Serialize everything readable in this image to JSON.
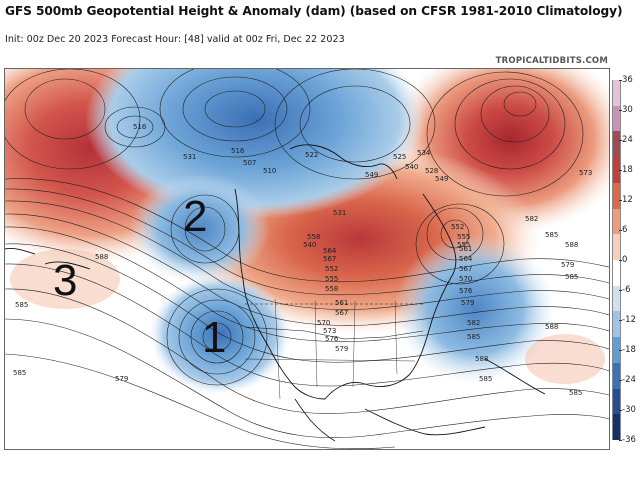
{
  "header": {
    "title": "GFS 500mb Geopotential Height & Anomaly (dam) (based on CFSR 1981-2010 Climatology)",
    "subtitle": "Init: 00z Dec 20 2023   Forecast Hour: [48]   valid at 00z Fri, Dec 22 2023",
    "credit": "TROPICALTIDBITS.COM"
  },
  "annotations": {
    "one": "1",
    "two": "2",
    "three": "3"
  },
  "colorbar": {
    "labels": [
      "36",
      "30",
      "24",
      "18",
      "12",
      "6",
      "0",
      "-6",
      "-12",
      "-18",
      "-24",
      "-30",
      "-36"
    ],
    "colors": [
      "#e7c1d6",
      "#c993b6",
      "#a04b52",
      "#c0413a",
      "#d96a4c",
      "#ed9c7c",
      "#f7cfba",
      "#ffffff",
      "#cfe0f2",
      "#9ec5e8",
      "#5d9fd4",
      "#3a72bb",
      "#244f93",
      "#15306a"
    ]
  },
  "contour_labels": [
    "516",
    "531",
    "507",
    "516",
    "510",
    "522",
    "549",
    "525",
    "540",
    "534",
    "528",
    "549",
    "531",
    "558",
    "564",
    "540",
    "567",
    "552",
    "555",
    "558",
    "561",
    "567",
    "570",
    "573",
    "576",
    "579",
    "582",
    "585",
    "588",
    "573",
    "579",
    "585",
    "588",
    "585",
    "585",
    "579",
    "555",
    "561",
    "564",
    "567",
    "570",
    "576",
    "579",
    "582",
    "585",
    "588",
    "585",
    "552",
    "555",
    "588",
    "585"
  ]
}
